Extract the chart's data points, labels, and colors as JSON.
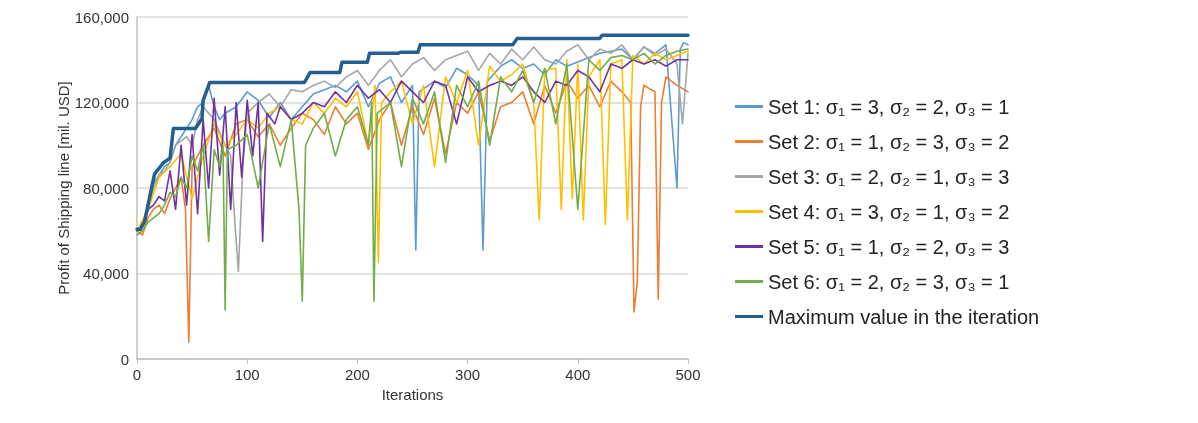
{
  "chart_data": {
    "type": "line",
    "xlabel": "Iterations",
    "ylabel": "Profit of Shipping line [mil. USD]",
    "xlim": [
      0,
      500
    ],
    "xticks": [
      0,
      100,
      200,
      300,
      400,
      500
    ],
    "ylim": [
      0,
      160000
    ],
    "yticks": [
      0,
      {
        "value": 40000,
        "label": "40,000"
      },
      {
        "value": 80000,
        "label": "80,000"
      },
      {
        "value": 120000,
        "label": "120,000"
      },
      {
        "value": 160000,
        "label": "160,000"
      }
    ],
    "grid": "y",
    "legend": "right",
    "marker": "none",
    "line_style": "solid",
    "series": [
      {
        "name": "Set 1: σ₁ = 3, σ₂ = 2, σ₃ = 1",
        "color": "#5b9bd5",
        "x": [
          0,
          5,
          10,
          15,
          20,
          25,
          30,
          35,
          40,
          45,
          50,
          55,
          60,
          65,
          70,
          75,
          80,
          90,
          100,
          110,
          120,
          130,
          140,
          150,
          160,
          170,
          180,
          190,
          200,
          210,
          220,
          230,
          240,
          250,
          253,
          256,
          270,
          280,
          290,
          300,
          310,
          314,
          318,
          330,
          340,
          350,
          360,
          370,
          380,
          390,
          400,
          410,
          420,
          430,
          440,
          450,
          460,
          470,
          480,
          490,
          493,
          496,
          500
        ],
        "values": [
          60000,
          63000,
          72000,
          82000,
          86000,
          90000,
          92000,
          100000,
          104000,
          108000,
          112000,
          118000,
          120000,
          128000,
          118000,
          112000,
          115000,
          118000,
          125000,
          121000,
          113000,
          120000,
          112000,
          118000,
          124000,
          126000,
          128000,
          125000,
          130000,
          118000,
          129000,
          132000,
          120000,
          128000,
          51000,
          125000,
          130000,
          127000,
          136000,
          133000,
          128000,
          51000,
          130000,
          137000,
          140000,
          136000,
          138000,
          133000,
          140000,
          137000,
          139000,
          141000,
          143000,
          144000,
          145000,
          140000,
          146000,
          143000,
          147000,
          80000,
          145000,
          148000,
          147000
        ]
      },
      {
        "name": "Set 2: σ₁ = 1, σ₂ = 3, σ₃ = 2",
        "color": "#ed7d31",
        "x": [
          0,
          5,
          10,
          15,
          20,
          25,
          30,
          35,
          40,
          44,
          47,
          50,
          60,
          70,
          80,
          90,
          100,
          110,
          120,
          130,
          140,
          150,
          160,
          170,
          180,
          190,
          200,
          210,
          220,
          230,
          240,
          250,
          260,
          270,
          280,
          290,
          300,
          310,
          320,
          330,
          340,
          350,
          360,
          370,
          380,
          390,
          400,
          410,
          420,
          430,
          440,
          448,
          451,
          454,
          457,
          460,
          470,
          473,
          476,
          480,
          490,
          500
        ],
        "values": [
          60000,
          58000,
          66000,
          70000,
          72000,
          68000,
          75000,
          80000,
          85000,
          70000,
          8000,
          90000,
          100000,
          108000,
          95000,
          110000,
          112000,
          104000,
          110000,
          100000,
          108000,
          115000,
          112000,
          105000,
          118000,
          110000,
          115000,
          98000,
          112000,
          120000,
          100000,
          118000,
          105000,
          122000,
          96000,
          120000,
          115000,
          125000,
          102000,
          118000,
          120000,
          125000,
          110000,
          128000,
          115000,
          130000,
          122000,
          128000,
          118000,
          130000,
          125000,
          120000,
          22000,
          36000,
          118000,
          128000,
          125000,
          28000,
          120000,
          132000,
          128000,
          125000
        ]
      },
      {
        "name": "Set 3: σ₁ = 2, σ₂ = 1, σ₃ = 3",
        "color": "#a5a5a5",
        "x": [
          0,
          5,
          10,
          15,
          20,
          25,
          30,
          35,
          40,
          45,
          50,
          55,
          60,
          70,
          80,
          85,
          88,
          92,
          96,
          100,
          110,
          120,
          130,
          140,
          150,
          160,
          170,
          180,
          190,
          200,
          210,
          220,
          230,
          240,
          250,
          260,
          270,
          280,
          290,
          300,
          310,
          320,
          330,
          340,
          350,
          360,
          370,
          380,
          390,
          400,
          410,
          420,
          430,
          440,
          450,
          460,
          470,
          480,
          490,
          495,
          500
        ],
        "values": [
          60000,
          62000,
          70000,
          80000,
          86000,
          88000,
          92000,
          100000,
          102000,
          104000,
          100000,
          112000,
          118000,
          112000,
          100000,
          95000,
          70000,
          41000,
          90000,
          115000,
          120000,
          124000,
          118000,
          126000,
          125000,
          128000,
          130000,
          127000,
          132000,
          135000,
          128000,
          135000,
          140000,
          132000,
          138000,
          141000,
          135000,
          140000,
          142000,
          144000,
          135000,
          143000,
          138000,
          145000,
          140000,
          146000,
          140000,
          138000,
          144000,
          147000,
          140000,
          145000,
          143000,
          147000,
          140000,
          146000,
          142000,
          145000,
          138000,
          110000,
          143000
        ]
      },
      {
        "name": "Set 4: σ₁ = 3, σ₂ = 1, σ₃ = 2",
        "color": "#ffc000",
        "x": [
          0,
          10,
          20,
          30,
          40,
          50,
          60,
          70,
          80,
          90,
          100,
          110,
          120,
          130,
          140,
          150,
          160,
          170,
          180,
          190,
          200,
          210,
          216,
          219,
          222,
          230,
          240,
          250,
          260,
          270,
          280,
          290,
          300,
          310,
          320,
          330,
          340,
          350,
          360,
          365,
          370,
          380,
          385,
          390,
          395,
          400,
          405,
          410,
          420,
          425,
          430,
          440,
          445,
          450,
          460,
          470,
          480,
          490,
          500
        ],
        "values": [
          60000,
          70000,
          85000,
          90000,
          96000,
          75000,
          95000,
          110000,
          100000,
          105000,
          112000,
          108000,
          115000,
          118000,
          112000,
          110000,
          120000,
          115000,
          122000,
          118000,
          125000,
          100000,
          128000,
          45000,
          120000,
          125000,
          130000,
          110000,
          128000,
          90000,
          132000,
          120000,
          135000,
          100000,
          137000,
          130000,
          133000,
          138000,
          120000,
          65000,
          135000,
          136000,
          70000,
          140000,
          75000,
          138000,
          65000,
          132000,
          140000,
          63000,
          138000,
          140000,
          65000,
          142000,
          138000,
          143000,
          140000,
          142000,
          144000
        ]
      },
      {
        "name": "Set 5: σ₁ = 1, σ₂ = 2, σ₃ = 3",
        "color": "#7030a0",
        "x": [
          0,
          5,
          10,
          15,
          20,
          25,
          30,
          35,
          40,
          45,
          50,
          55,
          60,
          65,
          70,
          75,
          80,
          85,
          90,
          95,
          100,
          105,
          110,
          114,
          118,
          125,
          130,
          140,
          150,
          160,
          170,
          180,
          190,
          200,
          210,
          220,
          230,
          240,
          250,
          260,
          270,
          280,
          290,
          300,
          310,
          320,
          330,
          340,
          350,
          360,
          370,
          380,
          390,
          400,
          410,
          420,
          430,
          440,
          450,
          460,
          470,
          480,
          490,
          500
        ],
        "values": [
          60000,
          62000,
          70000,
          72000,
          76000,
          74000,
          88000,
          70000,
          100000,
          72000,
          105000,
          68000,
          112000,
          80000,
          122000,
          86000,
          118000,
          70000,
          120000,
          85000,
          121000,
          95000,
          120000,
          55000,
          115000,
          110000,
          118000,
          112000,
          115000,
          120000,
          118000,
          125000,
          120000,
          128000,
          122000,
          126000,
          120000,
          130000,
          125000,
          120000,
          130000,
          128000,
          110000,
          132000,
          125000,
          128000,
          130000,
          128000,
          132000,
          125000,
          120000,
          130000,
          128000,
          135000,
          132000,
          125000,
          138000,
          136000,
          140000,
          138000,
          140000,
          137000,
          140000,
          140000
        ]
      },
      {
        "name": "Set 6: σ₁ = 2, σ₂ = 3, σ₃ = 1",
        "color": "#70ad47",
        "x": [
          0,
          5,
          10,
          15,
          20,
          25,
          30,
          35,
          40,
          45,
          50,
          55,
          60,
          65,
          70,
          75,
          78,
          80,
          82,
          90,
          100,
          110,
          120,
          130,
          140,
          147,
          150,
          153,
          160,
          170,
          180,
          190,
          200,
          210,
          213,
          215,
          218,
          230,
          240,
          250,
          260,
          270,
          280,
          290,
          300,
          310,
          320,
          330,
          340,
          350,
          360,
          370,
          380,
          390,
          400,
          410,
          420,
          430,
          440,
          450,
          460,
          470,
          480,
          490,
          500
        ],
        "values": [
          58000,
          60000,
          64000,
          66000,
          68000,
          72000,
          78000,
          76000,
          85000,
          80000,
          95000,
          88000,
          100000,
          55000,
          98000,
          90000,
          100000,
          23000,
          98000,
          100000,
          105000,
          80000,
          110000,
          90000,
          112000,
          70000,
          27000,
          100000,
          108000,
          115000,
          95000,
          112000,
          118000,
          100000,
          120000,
          27000,
          115000,
          120000,
          90000,
          122000,
          110000,
          125000,
          92000,
          128000,
          118000,
          130000,
          100000,
          132000,
          125000,
          135000,
          120000,
          136000,
          110000,
          138000,
          70000,
          140000,
          135000,
          141000,
          142000,
          140000,
          143000,
          138000,
          142000,
          144000,
          145000
        ]
      },
      {
        "name": "Maximum value in the iteration",
        "color": "#255e91",
        "x": [
          0,
          3,
          7,
          14,
          16,
          24,
          30,
          33,
          53,
          59,
          60,
          66,
          152,
          157,
          184,
          186,
          209,
          211,
          237,
          239,
          255,
          257,
          341,
          345,
          420,
          422,
          500
        ],
        "values": [
          60700,
          60700,
          64500,
          82000,
          86600,
          91800,
          94000,
          107800,
          107800,
          112500,
          121000,
          129400,
          129400,
          134000,
          134000,
          138800,
          138800,
          143000,
          143000,
          143500,
          143500,
          147000,
          147000,
          150000,
          150000,
          151500,
          151500
        ]
      }
    ]
  }
}
